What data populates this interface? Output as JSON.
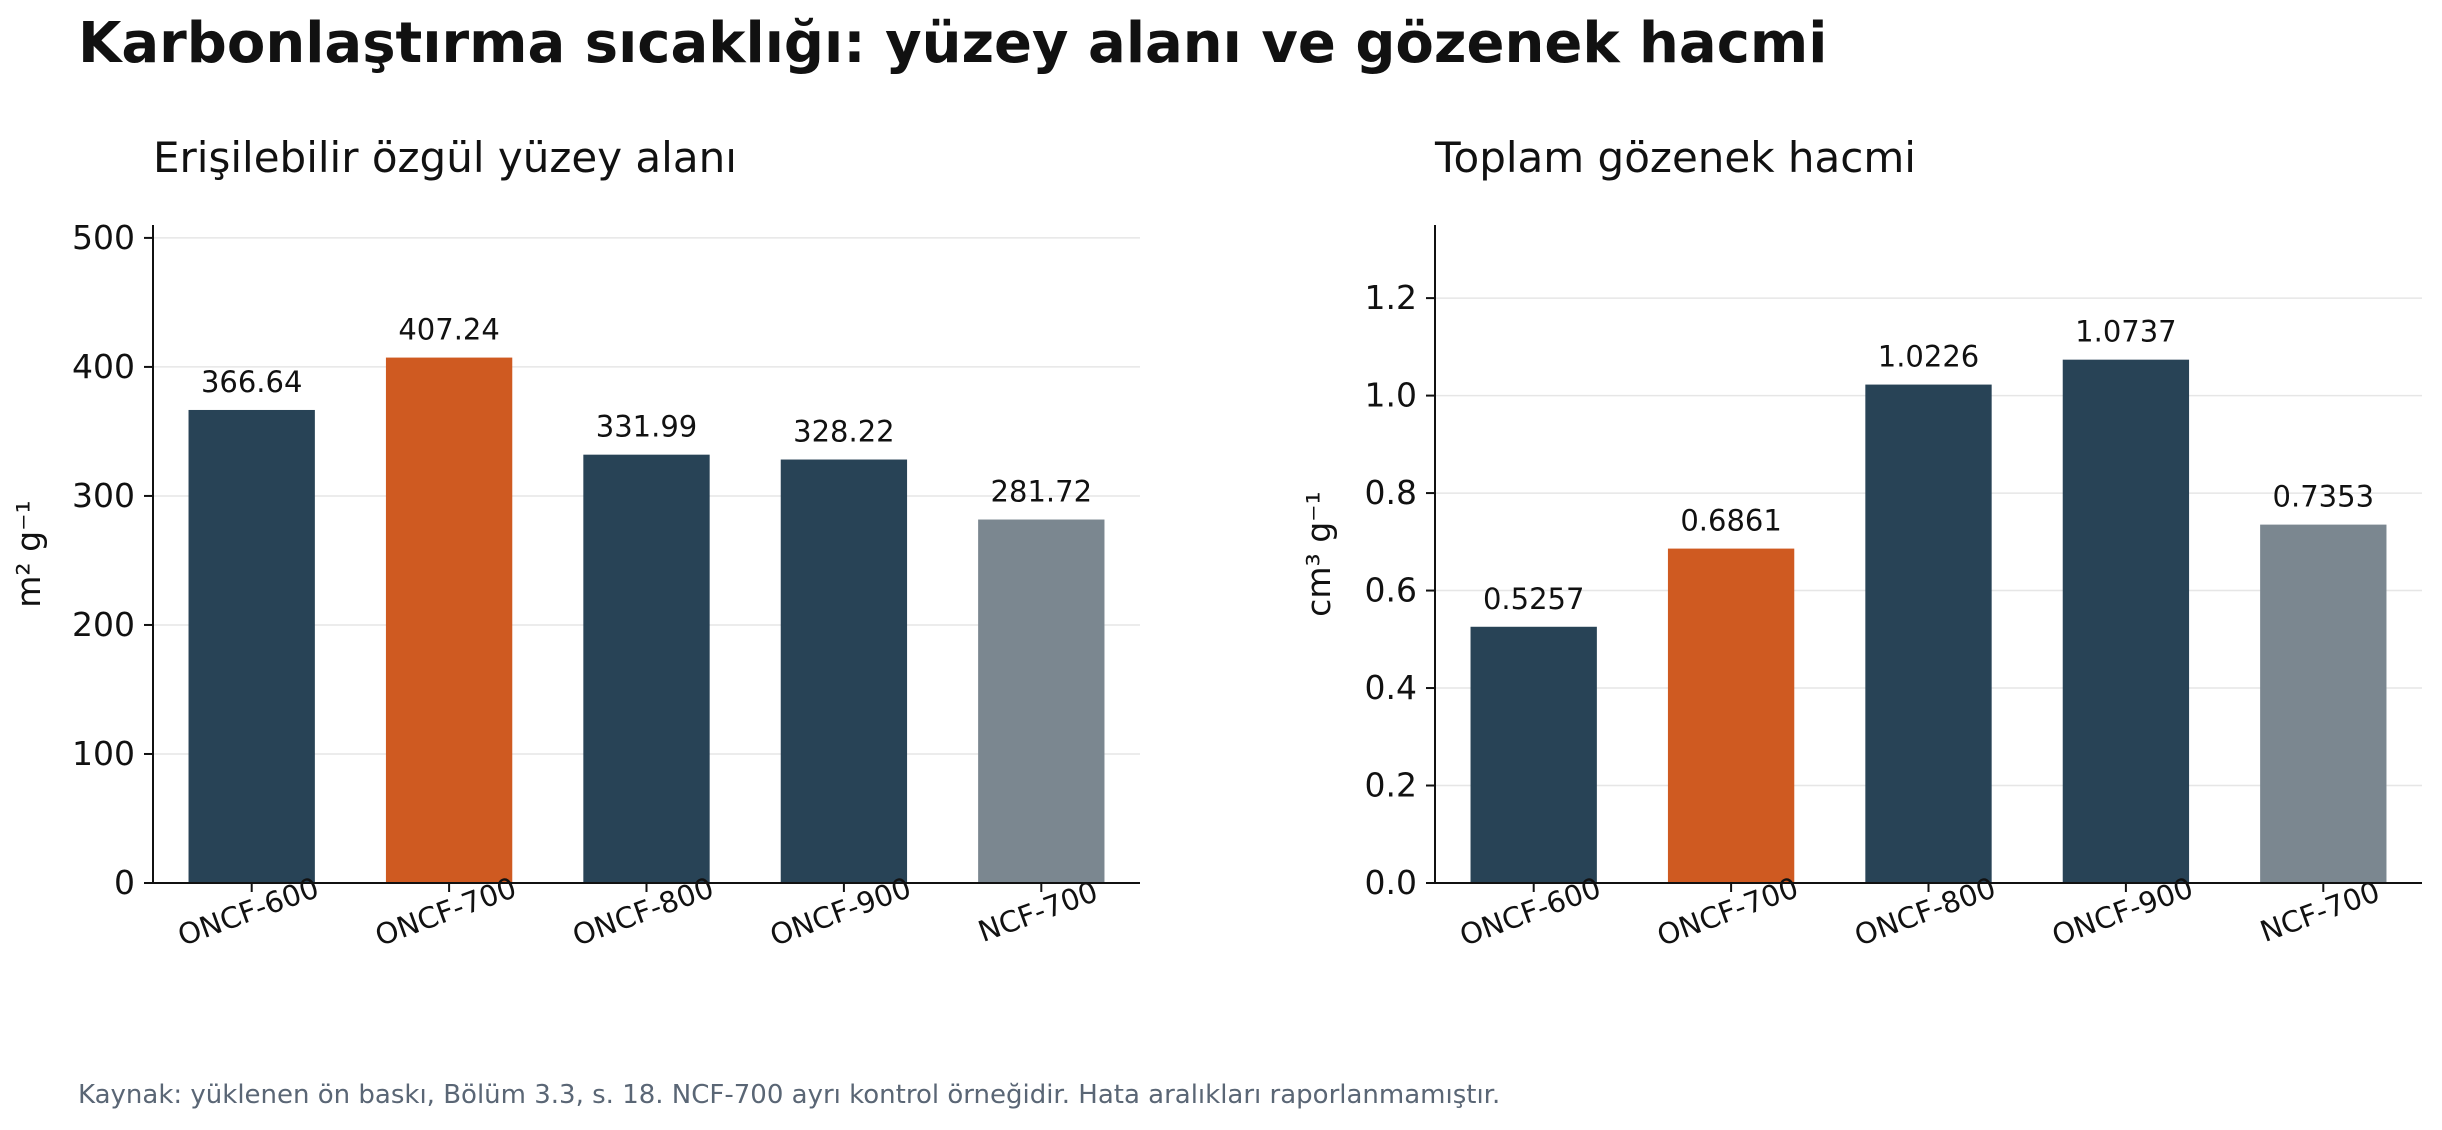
{
  "title": "Karbonlaştırma sıcaklığı: yüzey alanı ve gözenek hacmi",
  "footnote": "Kaynak: yüklenen ön baskı, Bölüm 3.3, s. 18. NCF-700 ayrı kontrol örneğidir. Hata aralıkları raporlanmamıştır.",
  "colors": {
    "default": "#284356",
    "highlight": "#cf5a21",
    "control": "#7b8790"
  },
  "chart_data": [
    {
      "type": "bar",
      "title": "Erişilebilir özgül yüzey alanı",
      "xlabel": "",
      "ylabel": "m² g⁻¹",
      "categories": [
        "ONCF-600",
        "ONCF-700",
        "ONCF-800",
        "ONCF-900",
        "NCF-700"
      ],
      "values": [
        366.64,
        407.24,
        331.99,
        328.22,
        281.72
      ],
      "value_labels": [
        "366.64",
        "407.24",
        "331.99",
        "328.22",
        "281.72"
      ],
      "bar_colors": [
        "default",
        "highlight",
        "default",
        "default",
        "control"
      ],
      "ylim": [
        0,
        510
      ],
      "yticks": [
        0,
        100,
        200,
        300,
        400,
        500
      ],
      "ytick_labels": [
        "0",
        "100",
        "200",
        "300",
        "400",
        "500"
      ],
      "grid": "horizontal"
    },
    {
      "type": "bar",
      "title": "Toplam gözenek hacmi",
      "xlabel": "",
      "ylabel": "cm³ g⁻¹",
      "categories": [
        "ONCF-600",
        "ONCF-700",
        "ONCF-800",
        "ONCF-900",
        "NCF-700"
      ],
      "values": [
        0.5257,
        0.6861,
        1.0226,
        1.0737,
        0.7353
      ],
      "value_labels": [
        "0.5257",
        "0.6861",
        "1.0226",
        "1.0737",
        "0.7353"
      ],
      "bar_colors": [
        "default",
        "highlight",
        "default",
        "default",
        "control"
      ],
      "ylim": [
        0,
        1.35
      ],
      "yticks": [
        0,
        0.2,
        0.4,
        0.6,
        0.8,
        1.0,
        1.2
      ],
      "ytick_labels": [
        "0.0",
        "0.2",
        "0.4",
        "0.6",
        "0.8",
        "1.0",
        "1.2"
      ],
      "grid": "horizontal"
    }
  ]
}
